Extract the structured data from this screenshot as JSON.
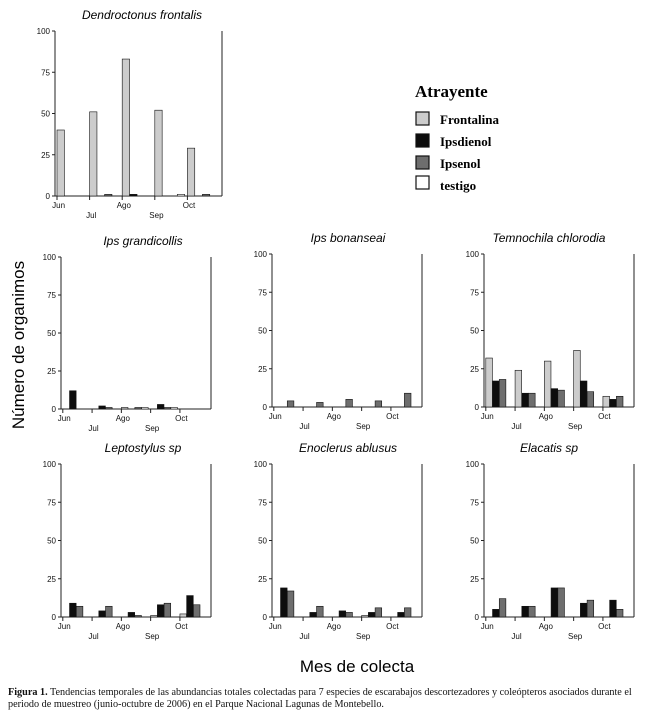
{
  "figure": {
    "y_axis_label": "Número de organimos",
    "x_axis_label": "Mes de colecta",
    "caption_label": "Figura 1.",
    "caption_text": "Tendencias temporales de las abundancias totales colectadas para 7 especies de escarabajos descortezadores y coleópteros asociados durante el periodo de muestreo (junio-octubre de 2006) en el Parque Nacional Lagunas de Montebello."
  },
  "legend": {
    "title": "Atrayente",
    "entries": [
      {
        "label": "Frontalina",
        "color": "#cccccc"
      },
      {
        "label": "Ipsdienol",
        "color": "#0d0d0d"
      },
      {
        "label": "Ipsenol",
        "color": "#6e6e6e"
      },
      {
        "label": "testigo",
        "color": "#ffffff"
      }
    ]
  },
  "chart_data": [
    {
      "type": "bar",
      "title": "Dendroctonus frontalis",
      "ylim": [
        0,
        100
      ],
      "yticks": [
        0,
        25,
        50,
        75,
        100
      ],
      "month_labels": [
        "Jun",
        "Jul",
        "Ago",
        "Sep",
        "Oct"
      ],
      "series": [
        {
          "name": "Frontalina",
          "values": [
            40,
            51,
            83,
            52,
            29
          ]
        },
        {
          "name": "Ipsdienol",
          "values": [
            0,
            0,
            1,
            0,
            0
          ]
        },
        {
          "name": "Ipsenol",
          "values": [
            0,
            1,
            0,
            0,
            1
          ]
        },
        {
          "name": "testigo",
          "values": [
            0,
            0,
            0,
            1,
            0
          ]
        }
      ]
    },
    {
      "type": "bar",
      "title": "Ips grandicollis",
      "ylim": [
        0,
        100
      ],
      "yticks": [
        0,
        25,
        50,
        75,
        100
      ],
      "month_labels": [
        "Jun",
        "Jul",
        "Ago",
        "Sep",
        "Oct"
      ],
      "series": [
        {
          "name": "Frontalina",
          "values": [
            0,
            0,
            1,
            0,
            0
          ]
        },
        {
          "name": "Ipsdienol",
          "values": [
            12,
            2,
            0,
            3,
            0
          ]
        },
        {
          "name": "Ipsenol",
          "values": [
            0,
            1,
            1,
            1,
            0
          ]
        },
        {
          "name": "testigo",
          "values": [
            0,
            0,
            1,
            1,
            0
          ]
        }
      ]
    },
    {
      "type": "bar",
      "title": "Ips bonanseai",
      "ylim": [
        0,
        100
      ],
      "yticks": [
        0,
        25,
        50,
        75,
        100
      ],
      "month_labels": [
        "Jun",
        "Jul",
        "Ago",
        "Sep",
        "Oct"
      ],
      "series": [
        {
          "name": "Frontalina",
          "values": [
            0,
            0,
            0,
            0,
            0
          ]
        },
        {
          "name": "Ipsdienol",
          "values": [
            0,
            0,
            0,
            0,
            0
          ]
        },
        {
          "name": "Ipsenol",
          "values": [
            4,
            3,
            5,
            4,
            9
          ]
        },
        {
          "name": "testigo",
          "values": [
            0,
            0,
            0,
            0,
            0
          ]
        }
      ]
    },
    {
      "type": "bar",
      "title": "Temnochila chlorodia",
      "ylim": [
        0,
        100
      ],
      "yticks": [
        0,
        25,
        50,
        75,
        100
      ],
      "month_labels": [
        "Jun",
        "Jul",
        "Ago",
        "Sep",
        "Oct"
      ],
      "series": [
        {
          "name": "Frontalina",
          "values": [
            32,
            24,
            30,
            37,
            7
          ]
        },
        {
          "name": "Ipsdienol",
          "values": [
            17,
            9,
            12,
            17,
            5
          ]
        },
        {
          "name": "Ipsenol",
          "values": [
            18,
            9,
            11,
            10,
            7
          ]
        },
        {
          "name": "testigo",
          "values": [
            0,
            0,
            0,
            0,
            0
          ]
        }
      ]
    },
    {
      "type": "bar",
      "title": "Leptostylus sp",
      "ylim": [
        0,
        100
      ],
      "yticks": [
        0,
        25,
        50,
        75,
        100
      ],
      "month_labels": [
        "Jun",
        "Jul",
        "Ago",
        "Sep",
        "Oct"
      ],
      "series": [
        {
          "name": "Frontalina",
          "values": [
            0,
            0,
            0,
            1,
            2
          ]
        },
        {
          "name": "Ipsdienol",
          "values": [
            9,
            4,
            3,
            8,
            14
          ]
        },
        {
          "name": "Ipsenol",
          "values": [
            7,
            7,
            1,
            9,
            8
          ]
        },
        {
          "name": "testigo",
          "values": [
            0,
            0,
            0,
            0,
            0
          ]
        }
      ]
    },
    {
      "type": "bar",
      "title": "Enoclerus ablusus",
      "ylim": [
        0,
        100
      ],
      "yticks": [
        0,
        25,
        50,
        75,
        100
      ],
      "month_labels": [
        "Jun",
        "Jul",
        "Ago",
        "Sep",
        "Oct"
      ],
      "series": [
        {
          "name": "Frontalina",
          "values": [
            0,
            0,
            0,
            1,
            0
          ]
        },
        {
          "name": "Ipsdienol",
          "values": [
            19,
            3,
            4,
            3,
            3
          ]
        },
        {
          "name": "Ipsenol",
          "values": [
            17,
            7,
            3,
            6,
            6
          ]
        },
        {
          "name": "testigo",
          "values": [
            0,
            0,
            0,
            0,
            0
          ]
        }
      ]
    },
    {
      "type": "bar",
      "title": "Elacatis sp",
      "ylim": [
        0,
        100
      ],
      "yticks": [
        0,
        25,
        50,
        75,
        100
      ],
      "month_labels": [
        "Jun",
        "Jul",
        "Ago",
        "Sep",
        "Oct"
      ],
      "series": [
        {
          "name": "Frontalina",
          "values": [
            0,
            0,
            0,
            0,
            0
          ]
        },
        {
          "name": "Ipsdienol",
          "values": [
            5,
            7,
            19,
            9,
            11
          ]
        },
        {
          "name": "Ipsenol",
          "values": [
            12,
            7,
            19,
            11,
            5
          ]
        },
        {
          "name": "testigo",
          "values": [
            0,
            0,
            0,
            0,
            0
          ]
        }
      ]
    }
  ]
}
